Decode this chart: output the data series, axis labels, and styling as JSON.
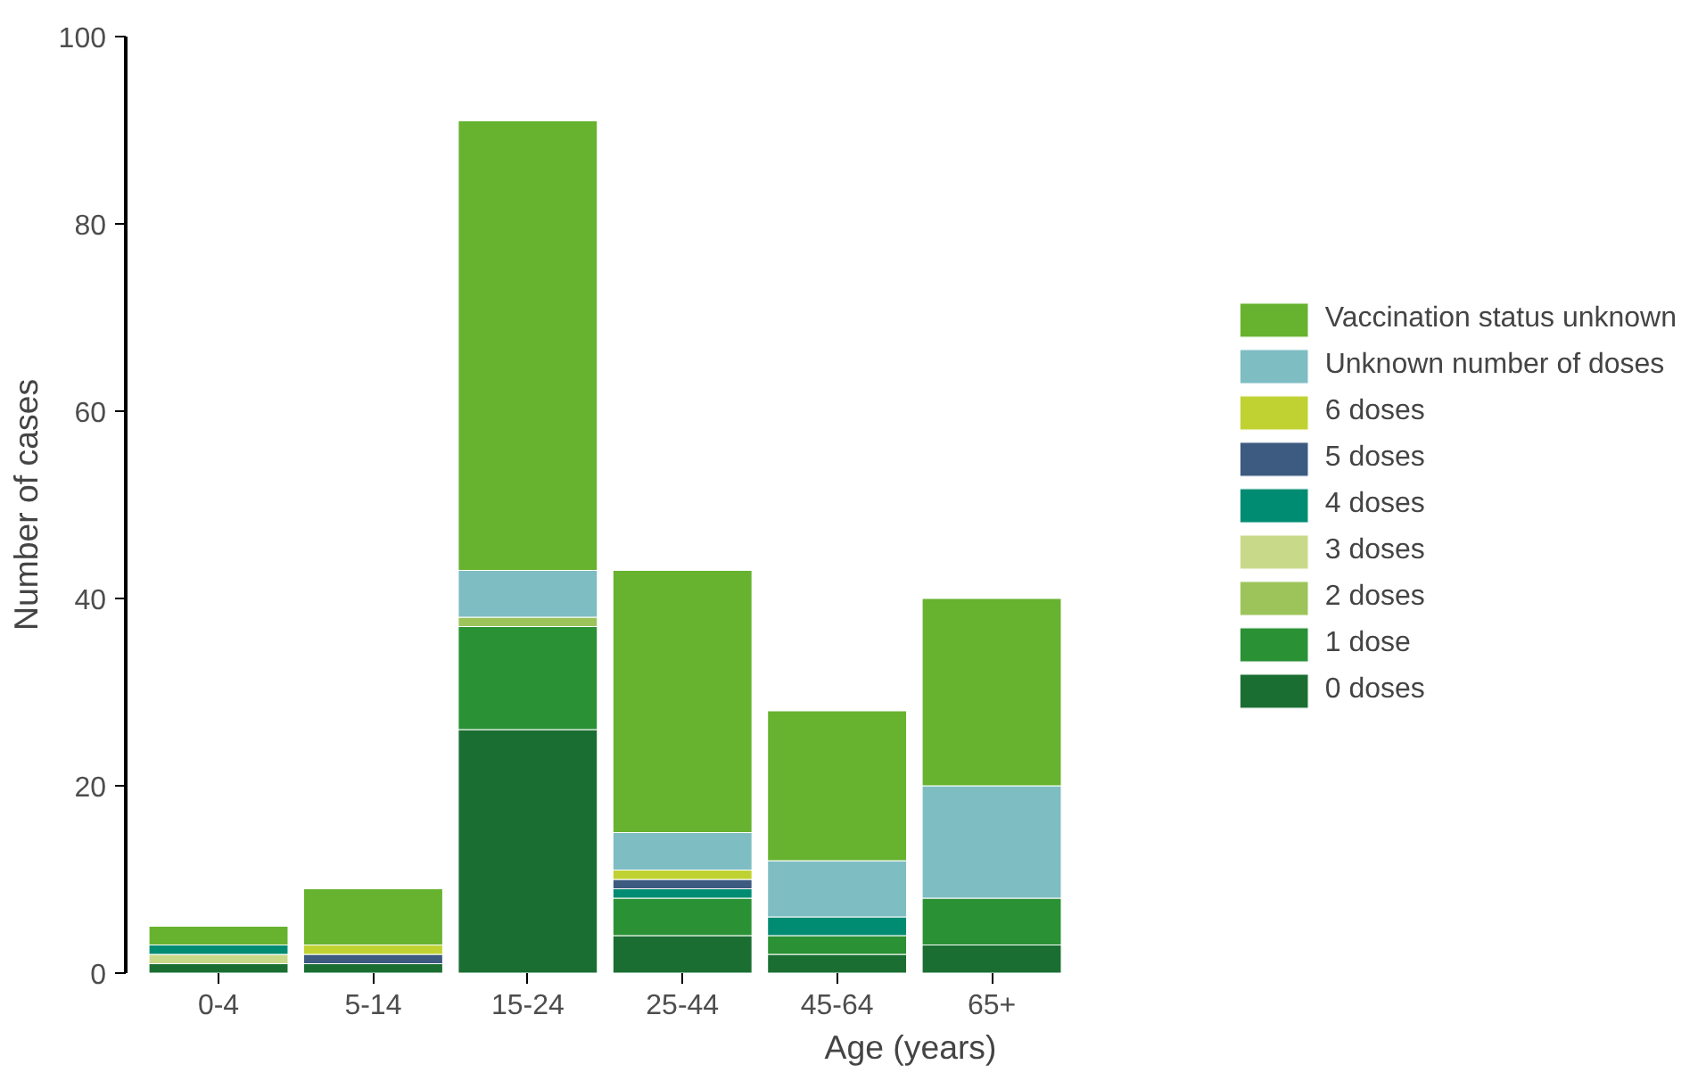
{
  "chart_data": {
    "type": "bar",
    "stacked": true,
    "xlabel": "Age (years)",
    "ylabel": "Number of cases",
    "categories": [
      "0-4",
      "5-14",
      "15-24",
      "25-44",
      "45-64",
      "65+"
    ],
    "ylim": [
      0,
      100
    ],
    "yticks": [
      0,
      20,
      40,
      60,
      80,
      100
    ],
    "grid": false,
    "legend": "right",
    "series": [
      {
        "name": "0 doses",
        "color": "#1b6e32",
        "values": [
          1,
          1,
          26,
          4,
          2,
          3
        ]
      },
      {
        "name": "1 dose",
        "color": "#2a9135",
        "values": [
          0,
          0,
          11,
          4,
          2,
          5
        ]
      },
      {
        "name": "2 doses",
        "color": "#9cc45a",
        "values": [
          0,
          0,
          1,
          0,
          0,
          0
        ]
      },
      {
        "name": "3 doses",
        "color": "#c9d98a",
        "values": [
          1,
          0,
          0,
          0,
          0,
          0
        ]
      },
      {
        "name": "4 doses",
        "color": "#008c72",
        "values": [
          1,
          0,
          0,
          1,
          2,
          0
        ]
      },
      {
        "name": "5 doses",
        "color": "#3d5a80",
        "values": [
          0,
          1,
          0,
          1,
          0,
          0
        ]
      },
      {
        "name": "6 doses",
        "color": "#c0d232",
        "values": [
          0,
          1,
          0,
          1,
          0,
          0
        ]
      },
      {
        "name": "Unknown number of doses",
        "color": "#7ebdc2",
        "values": [
          0,
          0,
          5,
          4,
          6,
          12
        ]
      },
      {
        "name": "Vaccination status unknown",
        "color": "#67b22f",
        "values": [
          2,
          6,
          48,
          28,
          16,
          20
        ]
      }
    ]
  }
}
